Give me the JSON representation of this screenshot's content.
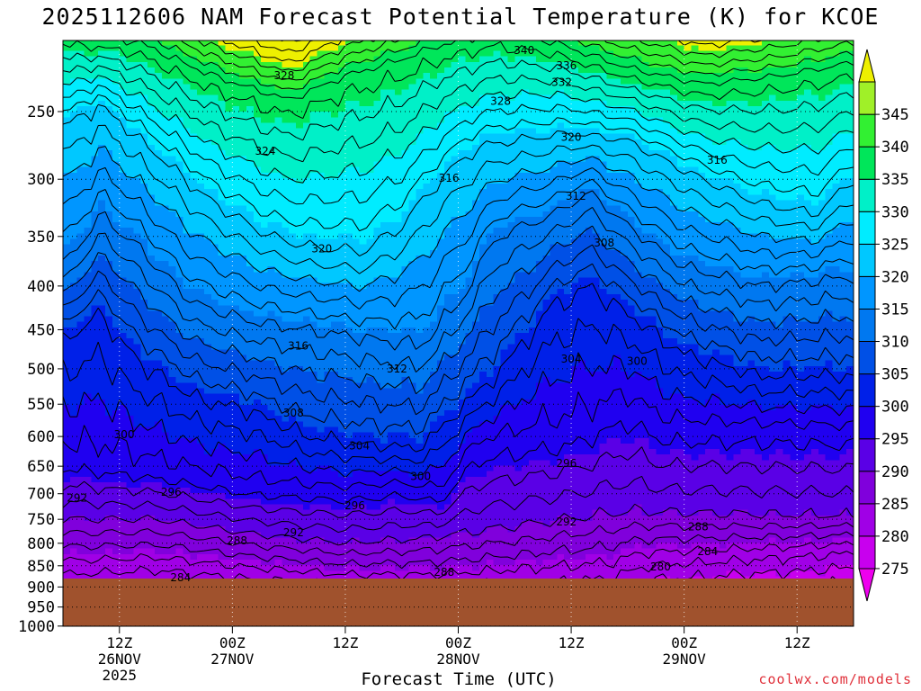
{
  "chart_data": {
    "type": "heatmap",
    "title": "2025112606 NAM Forecast Potential Temperature (K) for KCOE",
    "xlabel": "Forecast Time (UTC)",
    "ylabel": "",
    "y_axis": {
      "scale": "log",
      "inverted": true,
      "ticks": [
        250,
        300,
        350,
        400,
        450,
        500,
        550,
        600,
        650,
        700,
        750,
        800,
        850,
        900,
        950,
        1000
      ],
      "range": [
        200,
        1030
      ]
    },
    "x_axis": {
      "range_hours": [
        0,
        84
      ],
      "ticks": [
        {
          "hour": 6,
          "lines": [
            "12Z",
            "26NOV",
            "2025"
          ]
        },
        {
          "hour": 18,
          "lines": [
            "00Z",
            "27NOV"
          ]
        },
        {
          "hour": 30,
          "lines": [
            "12Z",
            ""
          ]
        },
        {
          "hour": 42,
          "lines": [
            "00Z",
            "28NOV"
          ]
        },
        {
          "hour": 54,
          "lines": [
            "12Z",
            ""
          ]
        },
        {
          "hour": 66,
          "lines": [
            "00Z",
            "29NOV"
          ]
        },
        {
          "hour": 78,
          "lines": [
            "12Z",
            ""
          ]
        }
      ]
    },
    "grid": true,
    "colorbar": {
      "position": "right",
      "levels": [
        275,
        280,
        285,
        290,
        295,
        300,
        305,
        310,
        315,
        320,
        325,
        330,
        335,
        340,
        345
      ],
      "colors": [
        "#ee00ee",
        "#c800ee",
        "#a000e6",
        "#8000dc",
        "#5a00e6",
        "#2000f0",
        "#0020e8",
        "#0050e6",
        "#0078f0",
        "#0096ff",
        "#00c8ff",
        "#00ecff",
        "#00f0c8",
        "#00e65a",
        "#32f032",
        "#a0f028",
        "#eef000"
      ]
    },
    "contour_labels": [
      {
        "text": "340",
        "hour": 49.0,
        "p": 212
      },
      {
        "text": "336",
        "hour": 53.5,
        "p": 221
      },
      {
        "text": "332",
        "hour": 53.0,
        "p": 231
      },
      {
        "text": "328",
        "hour": 23.5,
        "p": 227
      },
      {
        "text": "328",
        "hour": 46.5,
        "p": 243
      },
      {
        "text": "324",
        "hour": 21.5,
        "p": 278
      },
      {
        "text": "320",
        "hour": 54.0,
        "p": 268
      },
      {
        "text": "316",
        "hour": 41.0,
        "p": 299
      },
      {
        "text": "316",
        "hour": 69.5,
        "p": 285
      },
      {
        "text": "312",
        "hour": 54.5,
        "p": 314
      },
      {
        "text": "320",
        "hour": 27.5,
        "p": 362
      },
      {
        "text": "308",
        "hour": 57.5,
        "p": 356
      },
      {
        "text": "316",
        "hour": 25.0,
        "p": 470
      },
      {
        "text": "312",
        "hour": 35.5,
        "p": 500
      },
      {
        "text": "304",
        "hour": 54.0,
        "p": 487
      },
      {
        "text": "300",
        "hour": 61.0,
        "p": 490
      },
      {
        "text": "308",
        "hour": 24.5,
        "p": 563
      },
      {
        "text": "304",
        "hour": 31.5,
        "p": 615
      },
      {
        "text": "300",
        "hour": 6.5,
        "p": 597
      },
      {
        "text": "300",
        "hour": 38.0,
        "p": 668
      },
      {
        "text": "296",
        "hour": 53.5,
        "p": 645
      },
      {
        "text": "296",
        "hour": 11.5,
        "p": 697
      },
      {
        "text": "296",
        "hour": 31.0,
        "p": 723
      },
      {
        "text": "292",
        "hour": 1.5,
        "p": 708
      },
      {
        "text": "292",
        "hour": 24.5,
        "p": 777
      },
      {
        "text": "292",
        "hour": 53.5,
        "p": 755
      },
      {
        "text": "288",
        "hour": 18.5,
        "p": 795
      },
      {
        "text": "288",
        "hour": 40.5,
        "p": 865
      },
      {
        "text": "288",
        "hour": 67.5,
        "p": 765
      },
      {
        "text": "284",
        "hour": 12.5,
        "p": 878
      },
      {
        "text": "284",
        "hour": 68.5,
        "p": 818
      },
      {
        "text": "280",
        "hour": 63.5,
        "p": 852
      }
    ],
    "colors": {
      "ground": "#a0522d",
      "credit": "#e0303a"
    }
  },
  "credit": "coolwx.com/models"
}
